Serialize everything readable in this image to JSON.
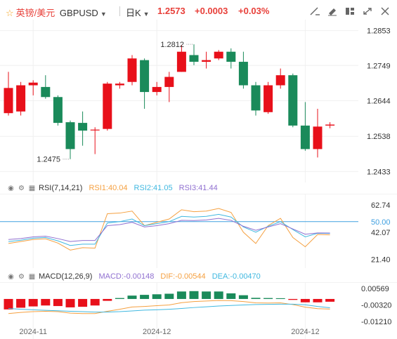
{
  "header": {
    "symbol_name": "英镑/美元",
    "symbol_code": "GBPUSD",
    "period": "日K",
    "last_price": "1.2573",
    "change": "+0.0003",
    "change_pct": "+0.03%",
    "tools": [
      "draw-line-icon",
      "paint-icon",
      "layout-icon",
      "expand-icon",
      "close-icon"
    ]
  },
  "colors": {
    "up": "#e8101a",
    "down": "#1a8a5a",
    "rsi1": "#f5a040",
    "rsi2": "#40b8e0",
    "rsi3": "#9070d0",
    "dif": "#f5a040",
    "dea": "#40b8e0",
    "ref_line": "#40a0e0"
  },
  "chart_data": [
    {
      "type": "candlestick",
      "name": "price",
      "y_ticks": [
        "1.2853",
        "1.2749",
        "1.2644",
        "1.2538",
        "1.2433"
      ],
      "ylim": [
        1.2413,
        1.2873
      ],
      "annotations": {
        "high_label": "1.2812",
        "low_label": "1.2475"
      },
      "candles": [
        {
          "o": 1.2607,
          "c": 1.2682,
          "h": 1.273,
          "l": 1.26
        },
        {
          "o": 1.2612,
          "c": 1.269,
          "h": 1.27,
          "l": 1.26
        },
        {
          "o": 1.269,
          "c": 1.2698,
          "h": 1.2705,
          "l": 1.266
        },
        {
          "o": 1.2685,
          "c": 1.2655,
          "h": 1.272,
          "l": 1.265
        },
        {
          "o": 1.2655,
          "c": 1.2578,
          "h": 1.266,
          "l": 1.257
        },
        {
          "o": 1.258,
          "c": 1.25,
          "h": 1.2585,
          "l": 1.247
        },
        {
          "o": 1.2578,
          "c": 1.2555,
          "h": 1.2612,
          "l": 1.251
        },
        {
          "o": 1.2558,
          "c": 1.2558,
          "h": 1.2565,
          "l": 1.2485
        },
        {
          "o": 1.256,
          "c": 1.2695,
          "h": 1.27,
          "l": 1.2555
        },
        {
          "o": 1.269,
          "c": 1.2695,
          "h": 1.27,
          "l": 1.268
        },
        {
          "o": 1.27,
          "c": 1.277,
          "h": 1.278,
          "l": 1.269
        },
        {
          "o": 1.2765,
          "c": 1.267,
          "h": 1.277,
          "l": 1.262
        },
        {
          "o": 1.267,
          "c": 1.2685,
          "h": 1.27,
          "l": 1.266
        },
        {
          "o": 1.2685,
          "c": 1.2715,
          "h": 1.273,
          "l": 1.264
        },
        {
          "o": 1.273,
          "c": 1.279,
          "h": 1.281,
          "l": 1.273
        },
        {
          "o": 1.278,
          "c": 1.276,
          "h": 1.2812,
          "l": 1.275
        },
        {
          "o": 1.276,
          "c": 1.2765,
          "h": 1.279,
          "l": 1.274
        },
        {
          "o": 1.277,
          "c": 1.279,
          "h": 1.2795,
          "l": 1.2765
        },
        {
          "o": 1.279,
          "c": 1.276,
          "h": 1.28,
          "l": 1.274
        },
        {
          "o": 1.276,
          "c": 1.269,
          "h": 1.279,
          "l": 1.268
        },
        {
          "o": 1.269,
          "c": 1.2615,
          "h": 1.27,
          "l": 1.26
        },
        {
          "o": 1.261,
          "c": 1.269,
          "h": 1.27,
          "l": 1.2605
        },
        {
          "o": 1.269,
          "c": 1.272,
          "h": 1.274,
          "l": 1.268
        },
        {
          "o": 1.272,
          "c": 1.257,
          "h": 1.2725,
          "l": 1.2565
        },
        {
          "o": 1.257,
          "c": 1.25,
          "h": 1.264,
          "l": 1.2495
        },
        {
          "o": 1.25,
          "c": 1.2567,
          "h": 1.262,
          "l": 1.2475
        },
        {
          "o": 1.257,
          "c": 1.2573,
          "h": 1.258,
          "l": 1.2562
        }
      ]
    },
    {
      "type": "line",
      "name": "RSI",
      "label": "RSI(7,14,21)",
      "series_labels": [
        "RSI1:40.04",
        "RSI2:41.05",
        "RSI3:41.44"
      ],
      "y_ticks": [
        "62.74",
        "50.00",
        "42.07",
        "21.40"
      ],
      "ylim": [
        17,
        69
      ],
      "ref_line": 50,
      "series": [
        {
          "name": "RSI1",
          "values": [
            33.5,
            35.0,
            36.5,
            37.0,
            33.8,
            28.5,
            30.3,
            30.0,
            56.0,
            56.5,
            58.0,
            47.0,
            49.5,
            52.0,
            59.0,
            57.5,
            58.0,
            60.0,
            57.0,
            42.0,
            33.5,
            47.0,
            52.5,
            38.0,
            31.0,
            40.3,
            40.04
          ]
        },
        {
          "name": "RSI2",
          "values": [
            35.0,
            36.0,
            37.5,
            38.0,
            35.5,
            32.0,
            33.0,
            33.0,
            49.0,
            50.0,
            52.0,
            47.0,
            48.5,
            50.0,
            54.0,
            53.5,
            54.0,
            55.5,
            53.5,
            46.0,
            42.0,
            46.5,
            50.0,
            44.0,
            38.5,
            41.2,
            41.05
          ]
        },
        {
          "name": "RSI3",
          "values": [
            36.5,
            37.2,
            38.5,
            39.0,
            37.2,
            35.0,
            35.8,
            35.8,
            47.0,
            47.8,
            49.5,
            46.0,
            47.0,
            48.5,
            51.0,
            50.8,
            51.3,
            52.5,
            51.0,
            46.5,
            43.5,
            46.0,
            48.5,
            44.5,
            40.5,
            41.5,
            41.44
          ]
        }
      ]
    },
    {
      "type": "bar+line",
      "name": "MACD",
      "label": "MACD(12,26,9)",
      "series_labels": [
        "MACD:-0.00148",
        "DIF:-0.00544",
        "DEA:-0.00470"
      ],
      "y_ticks": [
        "0.00569",
        "-0.00320",
        "-0.01210"
      ],
      "ylim": [
        -0.0128,
        0.0075
      ],
      "hist": [
        -0.0056,
        -0.0047,
        -0.004,
        -0.0035,
        -0.0038,
        -0.0045,
        -0.0042,
        -0.0035,
        -0.001,
        0.0005,
        0.0018,
        0.0022,
        0.0025,
        0.0028,
        0.004,
        0.0042,
        0.004,
        0.004,
        0.003,
        0.002,
        0.0006,
        0.0005,
        0.0004,
        -0.0005,
        -0.0018,
        -0.0018,
        -0.00148
      ],
      "series": [
        {
          "name": "DIF",
          "values": [
            -0.0078,
            -0.0072,
            -0.0068,
            -0.0066,
            -0.0068,
            -0.0076,
            -0.0078,
            -0.0078,
            -0.0066,
            -0.0055,
            -0.0043,
            -0.004,
            -0.0036,
            -0.0032,
            -0.002,
            -0.0014,
            -0.0011,
            -0.0008,
            -0.0009,
            -0.0014,
            -0.0021,
            -0.0022,
            -0.0021,
            -0.003,
            -0.0044,
            -0.0052,
            -0.00544
          ]
        },
        {
          "name": "DEA",
          "values": [
            -0.0051,
            -0.0055,
            -0.0058,
            -0.0061,
            -0.0063,
            -0.0066,
            -0.0068,
            -0.007,
            -0.007,
            -0.0068,
            -0.0064,
            -0.006,
            -0.0058,
            -0.0055,
            -0.0051,
            -0.0046,
            -0.0042,
            -0.0038,
            -0.0035,
            -0.0032,
            -0.003,
            -0.0029,
            -0.0028,
            -0.0028,
            -0.0031,
            -0.004,
            -0.0047
          ]
        }
      ]
    }
  ],
  "x_ticks": [
    {
      "label": "2024-11",
      "index": 2
    },
    {
      "label": "2024-12",
      "index": 12
    },
    {
      "label": "2024-12",
      "index": 24
    }
  ]
}
